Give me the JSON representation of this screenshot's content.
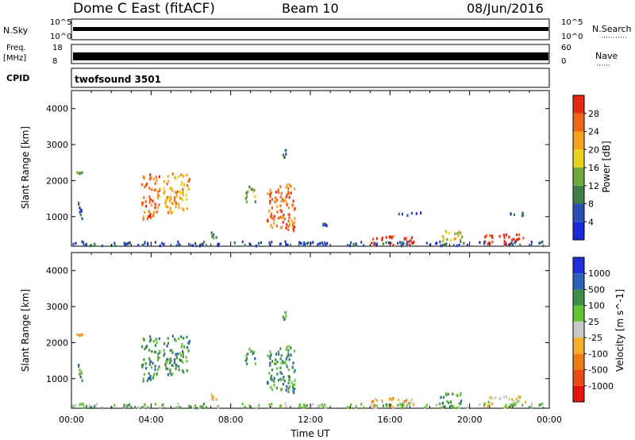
{
  "header": {
    "station": "Dome C East (fitACF)",
    "beam": "Beam 10",
    "date": "08/Jun/2016"
  },
  "strip_labels": {
    "nsky": "N.Sky",
    "freq_line1": "Freq.",
    "freq_line2": "[MHz]",
    "cpid": "CPID",
    "nsearch": "N.Search",
    "nave": "Nave",
    "nsky_ticks": [
      "10^5",
      "10^0"
    ],
    "nsearch_ticks": [
      "10^5",
      "10^0"
    ],
    "freq_ticks": [
      "18",
      "8"
    ],
    "nave_ticks": [
      "60",
      "0"
    ],
    "cpid_text": "twofsound 3501"
  },
  "chart_data": [
    {
      "type": "heatmap",
      "name": "power",
      "ylabel": "Slant Range [km]",
      "y_ticks": [
        1000,
        2000,
        3000,
        4000
      ],
      "ylim": [
        180,
        4500
      ],
      "colorbar": {
        "label": "Power [dB]",
        "ticks": [
          "4",
          "8",
          "12",
          "16",
          "20",
          "24",
          "28"
        ],
        "colors": [
          "#1a2ad8",
          "#2b4fb0",
          "#3f7e4a",
          "#6ea83a",
          "#e8d21f",
          "#f3a21a",
          "#ee6418",
          "#e42a12"
        ]
      },
      "regions": [
        {
          "t": [
            0.3,
            0.6
          ],
          "r": [
            900,
            1400
          ],
          "level": 1
        },
        {
          "t": [
            0.2,
            0.5
          ],
          "r": [
            2150,
            2300
          ],
          "level": 3
        },
        {
          "t": [
            3.5,
            4.4
          ],
          "r": [
            900,
            2200
          ],
          "level": 6
        },
        {
          "t": [
            4.6,
            5.9
          ],
          "r": [
            1100,
            2200
          ],
          "level": 5
        },
        {
          "t": [
            7.0,
            7.4
          ],
          "r": [
            350,
            550
          ],
          "level": 2
        },
        {
          "t": [
            8.7,
            9.2
          ],
          "r": [
            1400,
            1900
          ],
          "level": 3
        },
        {
          "t": [
            9.8,
            11.2
          ],
          "r": [
            600,
            1900
          ],
          "level": 6
        },
        {
          "t": [
            10.6,
            10.8
          ],
          "r": [
            2600,
            2850
          ],
          "level": 2
        },
        {
          "t": [
            12.6,
            12.8
          ],
          "r": [
            700,
            800
          ],
          "level": 1
        },
        {
          "t": [
            15.0,
            17.2
          ],
          "r": [
            200,
            450
          ],
          "level": 7
        },
        {
          "t": [
            16.4,
            17.6
          ],
          "r": [
            1020,
            1100
          ],
          "level": 1
        },
        {
          "t": [
            18.5,
            19.6
          ],
          "r": [
            300,
            600
          ],
          "level": 4
        },
        {
          "t": [
            20.7,
            22.8
          ],
          "r": [
            200,
            500
          ],
          "level": 7
        },
        {
          "t": [
            22.0,
            22.8
          ],
          "r": [
            1000,
            1100
          ],
          "level": 2
        },
        {
          "t": [
            0.0,
            23.8
          ],
          "r": [
            180,
            300
          ],
          "level": 1
        }
      ]
    },
    {
      "type": "heatmap",
      "name": "velocity",
      "ylabel": "Slant Range [km]",
      "xlabel": "Time UT",
      "x_ticks": [
        "00:00",
        "04:00",
        "08:00",
        "12:00",
        "16:00",
        "20:00",
        "00:00"
      ],
      "y_ticks": [
        1000,
        2000,
        3000,
        4000
      ],
      "ylim": [
        180,
        4500
      ],
      "colorbar": {
        "label": "Velocity [m s^-1]",
        "ticks": [
          "1000",
          "500",
          "100",
          "25",
          "-25",
          "-100",
          "-500",
          "-1000"
        ],
        "colors": [
          "#1f2ed8",
          "#2c62b3",
          "#3f8c4c",
          "#66c235",
          "#c8c8c8",
          "#f3b02a",
          "#f07c18",
          "#ea4a14",
          "#e4150f"
        ]
      },
      "regions": [
        {
          "t": [
            0.3,
            0.6
          ],
          "r": [
            900,
            1400
          ],
          "level": 6
        },
        {
          "t": [
            0.2,
            0.5
          ],
          "r": [
            2150,
            2300
          ],
          "level": 3
        },
        {
          "t": [
            3.5,
            4.4
          ],
          "r": [
            900,
            2200
          ],
          "level": 6
        },
        {
          "t": [
            4.6,
            5.9
          ],
          "r": [
            1100,
            2200
          ],
          "level": 6
        },
        {
          "t": [
            7.0,
            7.4
          ],
          "r": [
            350,
            550
          ],
          "level": 3
        },
        {
          "t": [
            8.7,
            9.2
          ],
          "r": [
            1400,
            1900
          ],
          "level": 6
        },
        {
          "t": [
            9.8,
            11.2
          ],
          "r": [
            600,
            1900
          ],
          "level": 6
        },
        {
          "t": [
            10.6,
            10.8
          ],
          "r": [
            2600,
            2850
          ],
          "level": 6
        },
        {
          "t": [
            15.0,
            17.2
          ],
          "r": [
            200,
            450
          ],
          "level": 3
        },
        {
          "t": [
            18.5,
            19.6
          ],
          "r": [
            300,
            600
          ],
          "level": 6
        },
        {
          "t": [
            20.7,
            22.8
          ],
          "r": [
            200,
            500
          ],
          "level": 4
        },
        {
          "t": [
            0.0,
            23.8
          ],
          "r": [
            180,
            300
          ],
          "level": 5
        }
      ]
    }
  ]
}
